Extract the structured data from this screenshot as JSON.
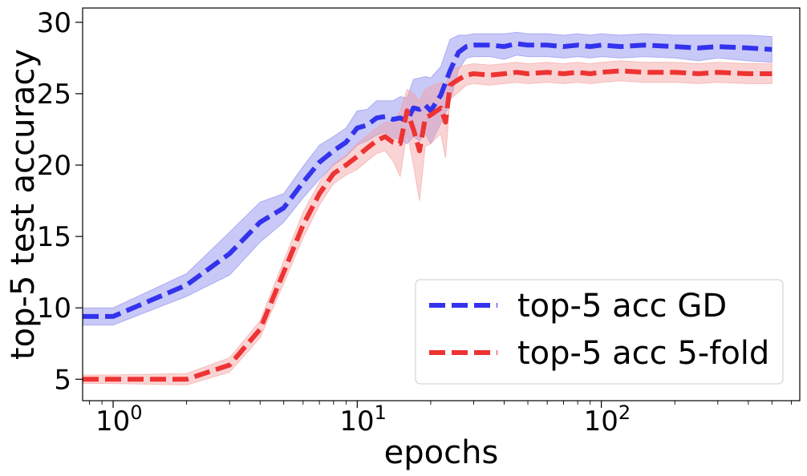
{
  "chart_data": {
    "type": "line",
    "xscale": "log",
    "xlabel": "epochs",
    "ylabel": "top-5 test accuracy",
    "xlim": [
      0.75,
      650
    ],
    "ylim": [
      3.5,
      31.0
    ],
    "x_ticks": [
      {
        "value": 1,
        "base": "10",
        "exp": "0"
      },
      {
        "value": 10,
        "base": "10",
        "exp": "1"
      },
      {
        "value": 100,
        "base": "10",
        "exp": "2"
      }
    ],
    "y_ticks": [
      5,
      10,
      15,
      20,
      25,
      30
    ],
    "y_tick_labels": [
      "5",
      "10",
      "15",
      "20",
      "25",
      "30"
    ],
    "legend_position": "lower-right",
    "series": [
      {
        "name": "top-5 acc GD",
        "color": "#3333ee",
        "band_color": "#8888ee",
        "x": [
          0.75,
          1,
          2,
          3,
          4,
          5,
          6,
          7,
          8,
          9,
          10,
          11,
          12,
          13,
          14,
          15,
          16,
          17,
          18,
          19,
          20,
          22,
          24,
          26,
          28,
          30,
          35,
          40,
          45,
          50,
          60,
          70,
          80,
          90,
          100,
          120,
          150,
          200,
          250,
          300,
          400,
          500
        ],
        "values": [
          9.4,
          9.4,
          11.6,
          13.8,
          16.0,
          17.0,
          18.8,
          20.2,
          21.0,
          21.6,
          22.6,
          22.8,
          23.3,
          23.4,
          23.2,
          23.3,
          23.1,
          24.0,
          23.9,
          24.2,
          23.8,
          24.9,
          26.6,
          27.9,
          28.3,
          28.4,
          28.4,
          28.3,
          28.5,
          28.4,
          28.4,
          28.3,
          28.4,
          28.3,
          28.4,
          28.3,
          28.4,
          28.3,
          28.2,
          28.3,
          28.2,
          28.1
        ],
        "spread": [
          0.6,
          0.6,
          0.8,
          1.5,
          1.4,
          1.0,
          1.1,
          1.2,
          1.0,
          1.0,
          1.2,
          1.1,
          1.2,
          1.1,
          1.3,
          1.5,
          1.6,
          2.0,
          2.2,
          2.0,
          2.3,
          2.0,
          2.2,
          1.2,
          0.8,
          0.8,
          0.8,
          0.9,
          0.8,
          0.8,
          0.8,
          0.8,
          0.8,
          0.8,
          0.8,
          0.8,
          0.8,
          0.8,
          0.9,
          0.8,
          0.9,
          0.9
        ]
      },
      {
        "name": "top-5 acc 5-fold",
        "color": "#ee3333",
        "band_color": "#f4a0a0",
        "x": [
          0.75,
          1,
          2,
          3,
          4,
          5,
          6,
          7,
          8,
          9,
          10,
          11,
          12,
          13,
          14,
          15,
          16,
          17,
          18,
          19,
          20,
          22,
          23,
          24,
          26,
          28,
          30,
          35,
          40,
          45,
          50,
          60,
          70,
          80,
          90,
          100,
          120,
          150,
          200,
          250,
          300,
          400,
          500
        ],
        "values": [
          5.0,
          5.0,
          5.0,
          6.0,
          8.5,
          12.5,
          15.8,
          18.0,
          19.4,
          20.0,
          20.6,
          21.2,
          21.7,
          22.0,
          21.6,
          21.5,
          23.8,
          22.5,
          21.0,
          23.3,
          23.5,
          24.0,
          23.0,
          25.6,
          26.0,
          26.3,
          26.4,
          26.3,
          26.4,
          26.5,
          26.4,
          26.5,
          26.4,
          26.5,
          26.4,
          26.5,
          26.6,
          26.5,
          26.5,
          26.4,
          26.5,
          26.4,
          26.4
        ],
        "spread": [
          0.3,
          0.3,
          0.4,
          0.5,
          0.6,
          0.8,
          0.9,
          0.8,
          0.7,
          0.7,
          0.9,
          0.9,
          0.9,
          1.0,
          1.3,
          2.3,
          1.5,
          2.5,
          3.5,
          2.0,
          2.0,
          1.8,
          2.5,
          1.0,
          0.9,
          0.7,
          0.7,
          0.7,
          0.7,
          0.7,
          0.7,
          0.7,
          0.7,
          0.7,
          0.7,
          0.7,
          0.7,
          0.7,
          0.7,
          0.7,
          0.7,
          0.7,
          0.7
        ]
      }
    ]
  }
}
